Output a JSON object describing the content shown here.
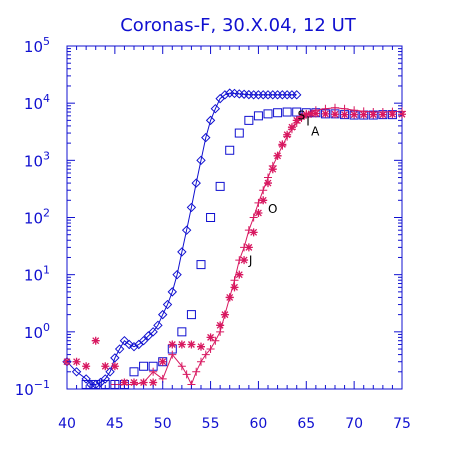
{
  "chart_data": {
    "type": "scatter",
    "title": "Coronas-F, 30.X.04, 12 UT",
    "xlabel": "",
    "ylabel": "",
    "xlim": [
      40,
      75
    ],
    "ylim": [
      0.1,
      100000
    ],
    "y_scale": "log",
    "grid": false,
    "x_ticks": [
      40,
      45,
      50,
      55,
      60,
      65,
      70,
      75
    ],
    "x_tick_labels": [
      "40",
      "45",
      "50",
      "55",
      "60",
      "65",
      "70",
      "75"
    ],
    "y_ticks": [
      0.1,
      1,
      10,
      100,
      1000,
      10000,
      100000
    ],
    "y_tick_labels": [
      {
        "base": "10",
        "exp": "−1"
      },
      {
        "base": "10",
        "exp": "0"
      },
      {
        "base": "10",
        "exp": "1"
      },
      {
        "base": "10",
        "exp": "2"
      },
      {
        "base": "10",
        "exp": "3"
      },
      {
        "base": "10",
        "exp": "4"
      },
      {
        "base": "10",
        "exp": "5"
      }
    ],
    "annotations": [
      {
        "text": "S",
        "x": 64.1,
        "y": 5200
      },
      {
        "text": "I",
        "x": 65.0,
        "y": 4100
      },
      {
        "text": "A",
        "x": 65.5,
        "y": 2700
      },
      {
        "text": "O",
        "x": 61.0,
        "y": 120
      },
      {
        "text": "J",
        "x": 59.0,
        "y": 15
      }
    ],
    "series": [
      {
        "marker": "diamond-line",
        "color": "#1010d0",
        "x": [
          40,
          41,
          42,
          42.5,
          43,
          43.5,
          44,
          44.5,
          45,
          45.5,
          46,
          46.5,
          47,
          47.5,
          48,
          48.5,
          49,
          49.5,
          50,
          50.5,
          51,
          51.5,
          52,
          52.5,
          53,
          53.5,
          54,
          54.5,
          55,
          55.5,
          56,
          56.5,
          57,
          57.5,
          58,
          58.5,
          59,
          59.5,
          60,
          60.5,
          61,
          61.5,
          62,
          62.5,
          63,
          63.5,
          64
        ],
        "y": [
          0.3,
          0.2,
          0.15,
          0.12,
          0.12,
          0.13,
          0.15,
          0.2,
          0.35,
          0.5,
          0.7,
          0.6,
          0.55,
          0.6,
          0.7,
          0.85,
          1.0,
          1.3,
          2.0,
          3.0,
          5.0,
          10,
          25,
          60,
          150,
          400,
          1000,
          2500,
          5000,
          8000,
          12000,
          14000,
          15000,
          14800,
          14500,
          14300,
          14100,
          14000,
          14000,
          14000,
          14000,
          14000,
          14000,
          14000,
          14000,
          14000,
          14000
        ]
      },
      {
        "marker": "square",
        "color": "#1010d0",
        "x": [
          42,
          43,
          44,
          45,
          46,
          47,
          48,
          49,
          50,
          51,
          52,
          53,
          54,
          55,
          56,
          57,
          58,
          59,
          60,
          61,
          62,
          63,
          64,
          65,
          66,
          67,
          68,
          69,
          70,
          71,
          72,
          73,
          74
        ],
        "y": [
          0.12,
          0.12,
          0.12,
          0.12,
          0.12,
          0.2,
          0.25,
          0.25,
          0.3,
          0.5,
          1.0,
          2.0,
          15,
          100,
          350,
          1500,
          3000,
          5000,
          6000,
          6500,
          6800,
          7000,
          7000,
          6800,
          6800,
          6500,
          6500,
          6300,
          6200,
          6200,
          6200,
          6300,
          6300
        ]
      },
      {
        "marker": "star",
        "color": "#d81860",
        "x": [
          40,
          41,
          42,
          43,
          44,
          45,
          46,
          47,
          48,
          49,
          50,
          51,
          52,
          53,
          54,
          55,
          56,
          56.5,
          57,
          57.5,
          58,
          58.5,
          59,
          59.5,
          60,
          60.5,
          61,
          61.5,
          62,
          62.5,
          63,
          63.5,
          64,
          64.5,
          65,
          65.5,
          66,
          67,
          68,
          69,
          70,
          71,
          72,
          73,
          74,
          75
        ],
        "y": [
          0.3,
          0.3,
          0.25,
          0.7,
          0.25,
          0.25,
          0.13,
          0.13,
          0.13,
          0.13,
          0.3,
          0.6,
          0.6,
          0.6,
          0.55,
          0.8,
          1.3,
          2.0,
          4.0,
          6.0,
          10,
          18,
          30,
          55,
          120,
          200,
          400,
          700,
          1200,
          1900,
          2800,
          3800,
          5000,
          5800,
          6300,
          6500,
          6600,
          6500,
          6400,
          6300,
          6300,
          6300,
          6300,
          6300,
          6400,
          6400
        ]
      },
      {
        "marker": "plus-line",
        "color": "#d81860",
        "x": [
          45,
          46,
          47,
          48,
          49,
          50,
          51,
          52,
          52.5,
          53,
          53.5,
          54,
          54.5,
          55,
          55.5,
          56,
          56.5,
          57,
          57.5,
          58,
          58.5,
          59,
          59.5,
          60,
          60.5,
          61,
          61.5,
          62,
          62.5,
          63,
          63.5,
          64,
          64.5,
          65,
          66,
          67,
          68,
          69,
          70,
          71,
          72,
          73,
          74,
          75
        ],
        "y": [
          0.12,
          0.12,
          0.12,
          0.13,
          0.2,
          0.15,
          0.4,
          0.25,
          0.18,
          0.12,
          0.2,
          0.3,
          0.4,
          0.5,
          0.7,
          1.0,
          2.0,
          4.0,
          8.0,
          18,
          30,
          60,
          100,
          180,
          300,
          500,
          800,
          1200,
          1800,
          2600,
          3500,
          4500,
          5500,
          6500,
          7500,
          8000,
          8300,
          8000,
          7500,
          7200,
          7000,
          7000,
          7100,
          7200
        ]
      }
    ]
  }
}
